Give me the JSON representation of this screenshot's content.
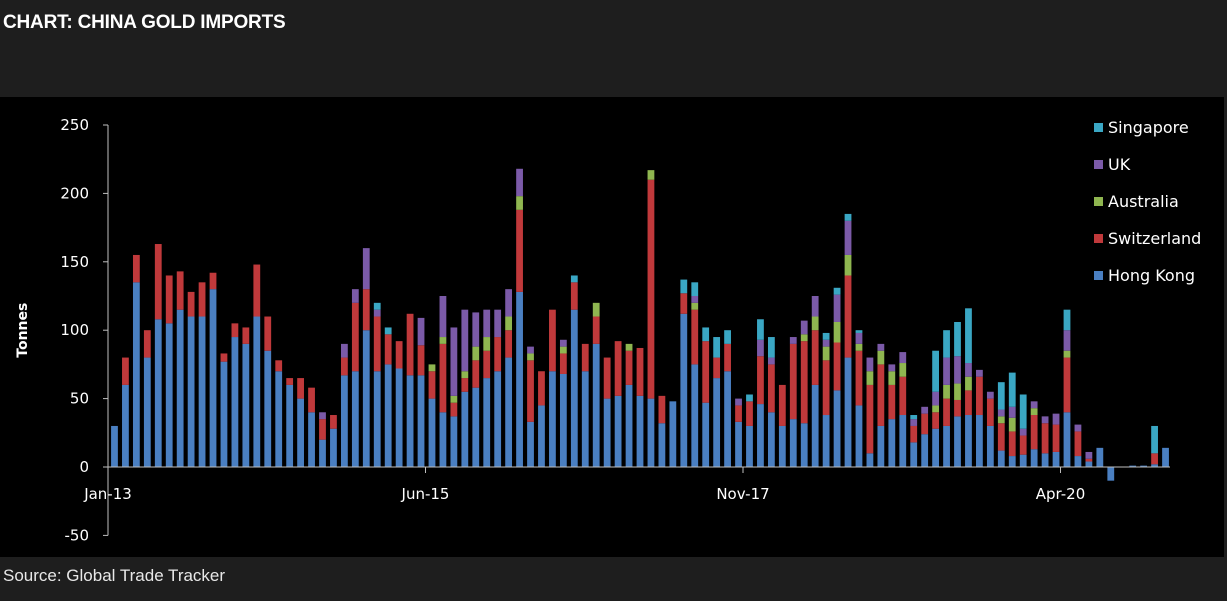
{
  "header": {
    "title": "CHART: CHINA GOLD IMPORTS"
  },
  "footer": {
    "source": "Source: Global Trade Tracker"
  },
  "colors": {
    "background": "#000000",
    "Hong Kong": "#4a7fc1",
    "Switzerland": "#c0393b",
    "Australia": "#8fb650",
    "UK": "#7b5aa8",
    "Singapore": "#3aa7c4"
  },
  "chart_data": {
    "type": "bar",
    "stacked": true,
    "title": "",
    "xlabel": "",
    "ylabel": "Tonnes",
    "ylim": [
      -50,
      250
    ],
    "yticks": [
      -50,
      0,
      50,
      100,
      150,
      200,
      250
    ],
    "xtick_labels": [
      {
        "label": "Jan-13",
        "index": 0
      },
      {
        "label": "Jun-15",
        "index": 29
      },
      {
        "label": "Nov-17",
        "index": 58
      },
      {
        "label": "Apr-20",
        "index": 87
      }
    ],
    "legend": {
      "position": "top-right",
      "order": [
        "Singapore",
        "UK",
        "Australia",
        "Switzerland",
        "Hong Kong"
      ]
    },
    "grid": false,
    "series": [
      {
        "name": "Hong Kong",
        "values": [
          30,
          60,
          135,
          80,
          108,
          105,
          115,
          110,
          110,
          130,
          77,
          95,
          90,
          110,
          85,
          70,
          60,
          50,
          40,
          20,
          28,
          67,
          70,
          100,
          70,
          75,
          72,
          67,
          67,
          50,
          40,
          37,
          55,
          58,
          65,
          70,
          80,
          128,
          33,
          45,
          70,
          68,
          115,
          70,
          90,
          50,
          52,
          60,
          52,
          50,
          32,
          48,
          112,
          75,
          47,
          65,
          70,
          33,
          30,
          46,
          40,
          30,
          35,
          32,
          60,
          38,
          56,
          80,
          45,
          10,
          30,
          35,
          38,
          18,
          24,
          28,
          30,
          37,
          38,
          38,
          30,
          12,
          8,
          9,
          13,
          10,
          11,
          40,
          8,
          4,
          14,
          -10,
          0,
          1,
          1,
          2,
          14
        ]
      },
      {
        "name": "Switzerland",
        "values": [
          0,
          20,
          20,
          20,
          55,
          35,
          28,
          18,
          25,
          12,
          6,
          10,
          12,
          38,
          25,
          8,
          5,
          15,
          18,
          15,
          10,
          13,
          50,
          30,
          40,
          22,
          20,
          45,
          22,
          20,
          50,
          10,
          10,
          20,
          20,
          25,
          20,
          60,
          45,
          25,
          45,
          15,
          20,
          20,
          20,
          30,
          40,
          25,
          35,
          160,
          20,
          0,
          15,
          40,
          45,
          15,
          20,
          12,
          18,
          35,
          35,
          30,
          55,
          60,
          40,
          40,
          35,
          60,
          40,
          50,
          45,
          25,
          28,
          12,
          15,
          12,
          20,
          12,
          18,
          28,
          20,
          20,
          18,
          14,
          25,
          22,
          20,
          40,
          18,
          2,
          0,
          0,
          0,
          0,
          0,
          8,
          0
        ]
      },
      {
        "name": "Australia",
        "values": [
          0,
          0,
          0,
          0,
          0,
          0,
          0,
          0,
          0,
          0,
          0,
          0,
          0,
          0,
          0,
          0,
          0,
          0,
          0,
          0,
          0,
          0,
          0,
          0,
          0,
          0,
          0,
          0,
          0,
          5,
          5,
          5,
          5,
          10,
          10,
          0,
          10,
          10,
          5,
          0,
          0,
          5,
          0,
          0,
          10,
          0,
          0,
          5,
          0,
          7,
          0,
          0,
          0,
          5,
          0,
          0,
          0,
          0,
          0,
          0,
          0,
          0,
          0,
          5,
          10,
          10,
          15,
          15,
          5,
          10,
          10,
          10,
          10,
          0,
          0,
          5,
          10,
          12,
          10,
          0,
          0,
          5,
          10,
          0,
          5,
          0,
          0,
          5,
          0,
          0,
          0,
          0,
          0,
          0,
          0,
          0,
          0
        ]
      },
      {
        "name": "UK",
        "values": [
          0,
          0,
          0,
          0,
          0,
          0,
          0,
          0,
          0,
          0,
          0,
          0,
          0,
          0,
          0,
          0,
          0,
          0,
          0,
          5,
          0,
          10,
          10,
          30,
          5,
          0,
          0,
          0,
          20,
          0,
          30,
          50,
          45,
          25,
          20,
          20,
          20,
          20,
          5,
          0,
          0,
          5,
          0,
          0,
          0,
          0,
          0,
          0,
          0,
          0,
          0,
          0,
          0,
          5,
          0,
          0,
          0,
          5,
          0,
          12,
          5,
          0,
          5,
          10,
          15,
          5,
          20,
          25,
          8,
          10,
          5,
          5,
          8,
          5,
          5,
          10,
          20,
          20,
          10,
          5,
          5,
          5,
          8,
          5,
          5,
          5,
          8,
          15,
          5,
          5,
          0,
          0,
          0,
          0,
          0,
          0,
          0
        ]
      },
      {
        "name": "Singapore",
        "values": [
          0,
          0,
          0,
          0,
          0,
          0,
          0,
          0,
          0,
          0,
          0,
          0,
          0,
          0,
          0,
          0,
          0,
          0,
          0,
          0,
          0,
          0,
          0,
          0,
          5,
          5,
          0,
          0,
          0,
          0,
          0,
          0,
          0,
          0,
          0,
          0,
          0,
          0,
          0,
          0,
          0,
          0,
          5,
          0,
          0,
          0,
          0,
          0,
          0,
          0,
          0,
          0,
          10,
          10,
          10,
          15,
          10,
          0,
          5,
          15,
          15,
          0,
          0,
          0,
          0,
          5,
          5,
          5,
          2,
          0,
          0,
          0,
          0,
          3,
          0,
          30,
          20,
          25,
          40,
          0,
          0,
          20,
          25,
          25,
          0,
          0,
          0,
          15,
          0,
          0,
          0,
          0,
          0,
          0,
          0,
          20,
          0
        ]
      }
    ]
  }
}
